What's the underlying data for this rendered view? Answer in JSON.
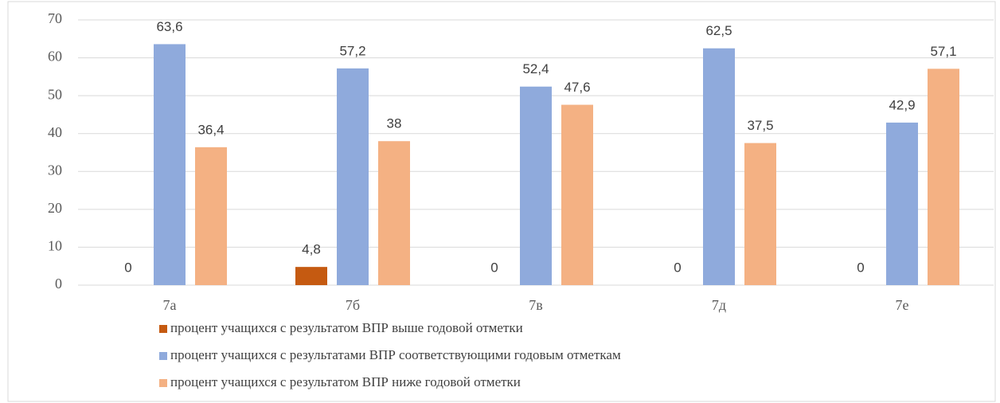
{
  "chart_data": {
    "type": "bar",
    "categories": [
      "7а",
      "7б",
      "7в",
      "7д",
      "7е"
    ],
    "series": [
      {
        "name": "процент учащихся с результатом ВПР выше годовой отметки",
        "color": "#c55a11",
        "values": [
          0,
          4.8,
          0,
          0,
          0
        ],
        "value_labels": [
          "0",
          "4,8",
          "0",
          "0",
          "0"
        ]
      },
      {
        "name": "процент учащихся с результатами ВПР  соответствующими годовым отметкам",
        "color": "#8faadc",
        "values": [
          63.6,
          57.2,
          52.4,
          62.5,
          42.9
        ],
        "value_labels": [
          "63,6",
          "57,2",
          "52,4",
          "62,5",
          "42,9"
        ]
      },
      {
        "name": "процент учащихся с результатом ВПР ниже годовой отметки",
        "color": "#f4b183",
        "values": [
          36.4,
          38,
          47.6,
          37.5,
          57.1
        ],
        "value_labels": [
          "36,4",
          "38",
          "47,6",
          "37,5",
          "57,1"
        ]
      }
    ],
    "ylim": [
      0,
      70
    ],
    "yticks": [
      0,
      10,
      20,
      30,
      40,
      50,
      60,
      70
    ],
    "grid": true,
    "legend": "bottom"
  }
}
